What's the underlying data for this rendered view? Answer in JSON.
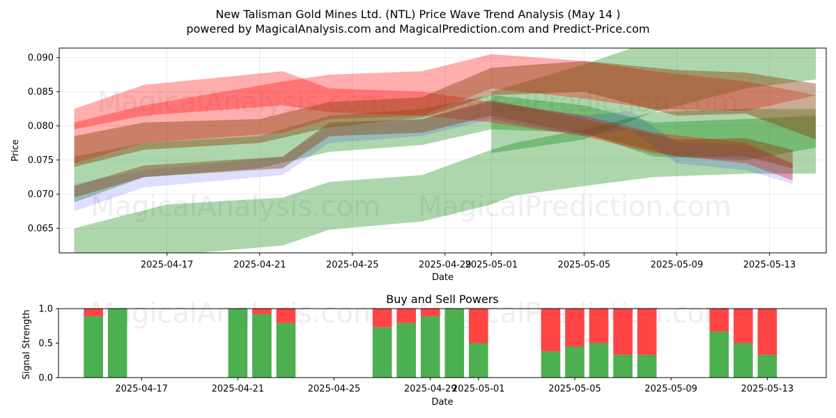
{
  "title_line1": "New Talisman Gold Mines Ltd. (NTL) Price Wave Trend Analysis (May 14 )",
  "title_line2": "powered by MagicalAnalysis.com and MagicalPrediction.com and Predict-Price.com",
  "watermarks": [
    "MagicalAnalysis.com",
    "MagicalPrediction.com"
  ],
  "chart_data": [
    {
      "type": "area",
      "title": "",
      "xlabel": "Date",
      "ylabel": "Price",
      "x_ticks": [
        "2025-04-17",
        "2025-04-21",
        "2025-04-25",
        "2025-04-29",
        "2025-05-01",
        "2025-05-05",
        "2025-05-09",
        "2025-05-13"
      ],
      "y_ticks": [
        "0.065",
        "0.070",
        "0.075",
        "0.080",
        "0.085",
        "0.090"
      ],
      "ylim": [
        0.0614,
        0.0914
      ],
      "xlim": [
        "2025-04-13",
        "2025-05-15"
      ],
      "grid": true,
      "colors": {
        "red": "#ff0000",
        "green": "#008000",
        "blue": "#0000ff",
        "brown": "#8b4513"
      },
      "series": [
        {
          "color": "green",
          "x": [
            "2025-04-13",
            "2025-04-17",
            "2025-04-22",
            "2025-04-24",
            "2025-04-28",
            "2025-05-01",
            "2025-05-02",
            "2025-05-05",
            "2025-05-08",
            "2025-05-12",
            "2025-05-15"
          ],
          "upper": [
            0.065,
            0.0685,
            0.0695,
            0.0718,
            0.0728,
            0.0765,
            0.0775,
            0.0795,
            0.082,
            0.0825,
            0.0825
          ],
          "lower": [
            0.058,
            0.061,
            0.0625,
            0.0648,
            0.066,
            0.0685,
            0.0698,
            0.0712,
            0.0725,
            0.073,
            0.073
          ]
        },
        {
          "color": "green",
          "x": [
            "2025-04-13",
            "2025-04-16",
            "2025-04-21",
            "2025-04-24",
            "2025-04-28",
            "2025-05-01",
            "2025-05-05",
            "2025-05-08",
            "2025-05-12",
            "2025-05-15"
          ],
          "upper": [
            0.0755,
            0.0775,
            0.0785,
            0.0815,
            0.0825,
            0.0845,
            0.083,
            0.0805,
            0.081,
            0.0815
          ],
          "lower": [
            0.0688,
            0.0725,
            0.0738,
            0.0762,
            0.0772,
            0.0795,
            0.079,
            0.0755,
            0.075,
            0.0768
          ]
        },
        {
          "color": "green",
          "x": [
            "2025-05-01",
            "2025-05-05",
            "2025-05-08",
            "2025-05-12",
            "2025-05-15"
          ],
          "upper": [
            0.085,
            0.089,
            0.0925,
            0.094,
            0.0935
          ],
          "lower": [
            0.076,
            0.078,
            0.082,
            0.0855,
            0.0868
          ]
        },
        {
          "color": "red",
          "x": [
            "2025-04-13",
            "2025-04-16",
            "2025-04-22",
            "2025-04-24",
            "2025-04-28",
            "2025-05-01",
            "2025-05-05",
            "2025-05-08",
            "2025-05-12",
            "2025-05-15"
          ],
          "upper": [
            0.0805,
            0.083,
            0.0865,
            0.0875,
            0.088,
            0.0905,
            0.0895,
            0.088,
            0.0865,
            0.0845
          ],
          "lower": [
            0.0745,
            0.0775,
            0.079,
            0.081,
            0.0815,
            0.0855,
            0.084,
            0.0825,
            0.0822,
            0.0845
          ]
        },
        {
          "color": "red",
          "x": [
            "2025-04-13",
            "2025-04-16",
            "2025-04-22",
            "2025-04-24",
            "2025-04-28",
            "2025-05-01",
            "2025-05-05",
            "2025-05-08",
            "2025-05-12",
            "2025-05-14"
          ],
          "upper": [
            0.0825,
            0.086,
            0.088,
            0.0855,
            0.085,
            0.0835,
            0.0815,
            0.079,
            0.0775,
            0.0745
          ],
          "lower": [
            0.0795,
            0.0815,
            0.083,
            0.082,
            0.0815,
            0.0805,
            0.0785,
            0.076,
            0.0745,
            0.072
          ]
        },
        {
          "color": "blue",
          "x": [
            "2025-04-13",
            "2025-04-16",
            "2025-04-22",
            "2025-04-24",
            "2025-04-28",
            "2025-05-01",
            "2025-05-05",
            "2025-05-07",
            "2025-05-09",
            "2025-05-12",
            "2025-05-14"
          ],
          "upper": [
            0.0715,
            0.0735,
            0.0755,
            0.08,
            0.081,
            0.0835,
            0.0815,
            0.0822,
            0.0775,
            0.0772,
            0.0745
          ],
          "lower": [
            0.0675,
            0.071,
            0.0728,
            0.0775,
            0.0785,
            0.081,
            0.0785,
            0.0795,
            0.0745,
            0.0735,
            0.0715
          ]
        },
        {
          "color": "brown",
          "x": [
            "2025-04-13",
            "2025-04-16",
            "2025-04-21",
            "2025-04-24",
            "2025-04-28",
            "2025-05-01",
            "2025-05-05",
            "2025-05-09",
            "2025-05-12",
            "2025-05-15"
          ],
          "upper": [
            0.0785,
            0.0805,
            0.081,
            0.0835,
            0.0842,
            0.0885,
            0.0895,
            0.0882,
            0.0878,
            0.0862
          ],
          "lower": [
            0.074,
            0.0765,
            0.0775,
            0.0798,
            0.0812,
            0.0845,
            0.085,
            0.0815,
            0.0818,
            0.078
          ]
        },
        {
          "color": "brown",
          "x": [
            "2025-04-13",
            "2025-04-16",
            "2025-04-22",
            "2025-04-24",
            "2025-04-28",
            "2025-05-01",
            "2025-05-05",
            "2025-05-09",
            "2025-05-12",
            "2025-05-14"
          ],
          "upper": [
            0.0712,
            0.0742,
            0.0755,
            0.0805,
            0.081,
            0.0838,
            0.081,
            0.078,
            0.0782,
            0.0765
          ],
          "lower": [
            0.0695,
            0.0725,
            0.0738,
            0.0785,
            0.079,
            0.0815,
            0.0788,
            0.0755,
            0.0755,
            0.0738
          ]
        }
      ]
    },
    {
      "type": "bar",
      "title": "Buy and Sell Powers",
      "xlabel": "Date",
      "ylabel": "Signal Strength",
      "y_ticks": [
        "0.0",
        "0.5",
        "1.0"
      ],
      "ylim": [
        0,
        1
      ],
      "x_ticks": [
        "2025-04-17",
        "2025-04-21",
        "2025-04-25",
        "2025-04-29",
        "2025-05-01",
        "2025-05-05",
        "2025-05-09",
        "2025-05-13"
      ],
      "colors": {
        "buy": "#4caf50",
        "sell": "#ff4444"
      },
      "dates": [
        "2025-04-15",
        "2025-04-16",
        "2025-04-21",
        "2025-04-22",
        "2025-04-23",
        "2025-04-27",
        "2025-04-28",
        "2025-04-29",
        "2025-04-30",
        "2025-05-01",
        "2025-05-04",
        "2025-05-05",
        "2025-05-06",
        "2025-05-07",
        "2025-05-08",
        "2025-05-11",
        "2025-05-12",
        "2025-05-13"
      ],
      "series": [
        {
          "name": "buy",
          "values": [
            0.89,
            1.0,
            1.0,
            0.92,
            0.79,
            0.73,
            0.79,
            0.89,
            1.0,
            0.5,
            0.38,
            0.45,
            0.5,
            0.33,
            0.33,
            0.67,
            0.5,
            0.33
          ]
        },
        {
          "name": "sell",
          "values": [
            0.11,
            0.0,
            0.0,
            0.08,
            0.21,
            0.27,
            0.21,
            0.11,
            0.0,
            0.5,
            0.62,
            0.55,
            0.5,
            0.67,
            0.67,
            0.33,
            0.5,
            0.67
          ]
        }
      ]
    }
  ]
}
